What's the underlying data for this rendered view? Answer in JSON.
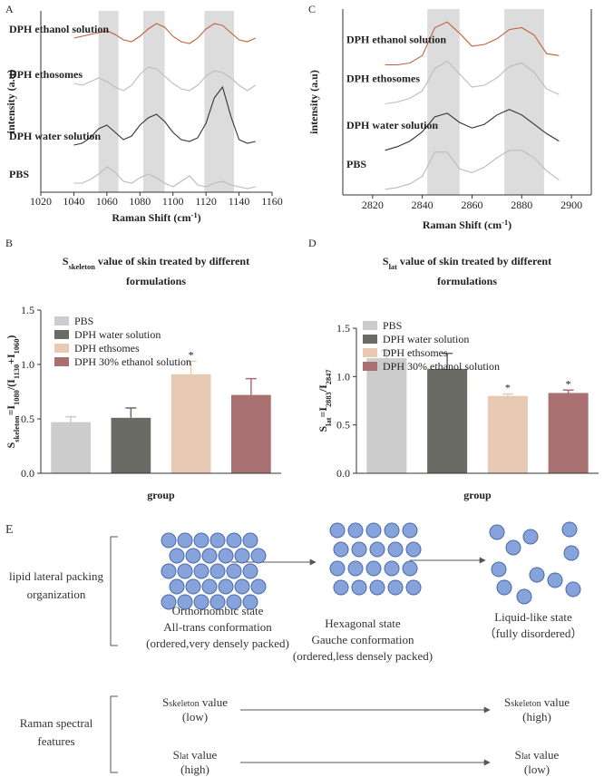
{
  "chart_data": [
    {
      "type": "spectrum",
      "panel_label": "A",
      "ylabel": [
        {
          "text": "intensity (a.u)"
        }
      ],
      "xlabel": [
        {
          "text": "Raman Shift (cm"
        },
        {
          "text": "-1",
          "sup": true
        },
        {
          "text": ")"
        }
      ],
      "xlim": [
        1020,
        1160
      ],
      "xticks": [
        1020,
        1040,
        1060,
        1080,
        1100,
        1120,
        1140,
        1160
      ],
      "ylim": [
        0,
        10
      ],
      "shaded_ranges": [
        [
          1055,
          1067
        ],
        [
          1082,
          1095
        ],
        [
          1119,
          1137
        ]
      ],
      "x": [
        1040,
        1045,
        1050,
        1055,
        1060,
        1065,
        1070,
        1075,
        1080,
        1085,
        1090,
        1095,
        1100,
        1105,
        1110,
        1115,
        1120,
        1125,
        1130,
        1135,
        1140,
        1145,
        1150
      ],
      "series": [
        {
          "name": "DPH ethanol solution",
          "color": "#c0603a",
          "values": [
            8.5,
            8.6,
            8.7,
            8.8,
            8.9,
            8.7,
            8.4,
            8.3,
            8.6,
            9.0,
            9.3,
            9.1,
            8.6,
            8.3,
            8.2,
            8.5,
            9.0,
            9.3,
            9.2,
            8.8,
            8.4,
            8.3,
            8.5
          ]
        },
        {
          "name": "DPH ethosomes",
          "color": "#bbbbbb",
          "values": [
            6.0,
            5.9,
            6.1,
            6.3,
            6.1,
            5.8,
            5.6,
            5.9,
            6.5,
            6.9,
            6.8,
            6.4,
            6.0,
            5.7,
            5.6,
            5.9,
            6.4,
            6.7,
            6.6,
            6.3,
            5.9,
            5.6,
            5.9
          ]
        },
        {
          "name": "DPH water solution",
          "color": "#333333",
          "values": [
            2.6,
            2.7,
            3.0,
            3.5,
            3.7,
            3.3,
            2.9,
            3.1,
            3.7,
            4.1,
            4.3,
            3.9,
            3.3,
            2.9,
            2.8,
            3.0,
            3.8,
            5.2,
            5.8,
            4.2,
            2.9,
            2.7,
            2.8
          ]
        },
        {
          "name": "PBS",
          "color": "#bbbbbb",
          "values": [
            0.5,
            0.5,
            0.7,
            1.0,
            1.4,
            1.1,
            0.6,
            0.5,
            0.8,
            1.0,
            0.8,
            0.5,
            0.3,
            0.6,
            0.9,
            0.4,
            0.3,
            0.5,
            0.6,
            0.4,
            0.3,
            0.2,
            0.3
          ]
        }
      ]
    },
    {
      "type": "bar",
      "panel_label": "B",
      "title": [
        [
          {
            "text": "S"
          },
          {
            "text": "skeleton",
            "sub": true
          },
          {
            "text": " value of  skin treated by different"
          }
        ],
        [
          {
            "text": "formulations"
          }
        ]
      ],
      "ylabel": [
        {
          "text": "S"
        },
        {
          "text": "skeleton",
          "sub": true
        },
        {
          "text": "=I"
        },
        {
          "text": "1080",
          "sub": true
        },
        {
          "text": "/(I"
        },
        {
          "text": "1130",
          "sub": true
        },
        {
          "text": "+I"
        },
        {
          "text": "1060",
          "sub": true
        },
        {
          "text": ")"
        }
      ],
      "xlabel": "group",
      "categories": [
        "PBS",
        "DPH water solution",
        "DPH ethsomes",
        "DPH 30% ethanol solution"
      ],
      "colors": [
        "#cccccc",
        "#6b6b66",
        "#e8c9b4",
        "#a87070"
      ],
      "values": [
        0.47,
        0.51,
        0.91,
        0.72
      ],
      "errors": [
        0.05,
        0.09,
        0.12,
        0.15
      ],
      "significance": [
        null,
        null,
        "*",
        null
      ],
      "ylim": [
        0,
        1.5
      ],
      "yticks": [
        {
          "value": 0,
          "label": "0.0"
        },
        0.5,
        {
          "value": 1,
          "label": "1.0"
        },
        1.5
      ]
    },
    {
      "type": "spectrum",
      "panel_label": "C",
      "ylabel": [
        {
          "text": "intensity (a.u)"
        }
      ],
      "xlabel": [
        {
          "text": "Raman Shift (cm"
        },
        {
          "text": "-1",
          "sup": true
        },
        {
          "text": ")"
        }
      ],
      "xlim": [
        2808,
        2908
      ],
      "xticks": [
        2820,
        2840,
        2860,
        2880,
        2900
      ],
      "ylim": [
        0,
        10
      ],
      "shaded_ranges": [
        [
          2842,
          2855
        ],
        [
          2873,
          2889
        ]
      ],
      "x": [
        2825,
        2830,
        2835,
        2840,
        2845,
        2850,
        2855,
        2860,
        2865,
        2870,
        2875,
        2880,
        2885,
        2890,
        2895
      ],
      "series": [
        {
          "name": "DPH ethanol solution",
          "color": "#c0603a",
          "values": [
            7.0,
            7.0,
            7.1,
            7.5,
            9.0,
            9.3,
            8.7,
            8.0,
            8.1,
            8.4,
            8.9,
            9.0,
            8.6,
            7.6,
            7.5
          ]
        },
        {
          "name": "DPH ethosomes",
          "color": "#bbbbbb",
          "values": [
            4.9,
            5.0,
            5.2,
            5.6,
            6.8,
            7.2,
            6.5,
            5.8,
            5.9,
            6.3,
            6.9,
            7.1,
            6.6,
            5.7,
            5.4
          ]
        },
        {
          "name": "DPH water solution",
          "color": "#333333",
          "values": [
            2.4,
            2.6,
            2.9,
            3.4,
            4.2,
            4.4,
            3.9,
            3.6,
            3.8,
            4.3,
            4.6,
            4.3,
            3.8,
            3.3,
            2.9
          ]
        },
        {
          "name": "PBS",
          "color": "#bbbbbb",
          "values": [
            0.3,
            0.4,
            0.6,
            1.0,
            2.3,
            2.3,
            1.4,
            1.2,
            1.5,
            2.0,
            2.4,
            2.4,
            2.0,
            1.3,
            0.8
          ]
        }
      ]
    },
    {
      "type": "bar",
      "panel_label": "D",
      "title": [
        [
          {
            "text": "S"
          },
          {
            "text": "lat",
            "sub": true
          },
          {
            "text": " value of  skin treated by different"
          }
        ],
        [
          {
            "text": "formulations"
          }
        ]
      ],
      "ylabel": [
        {
          "text": "S"
        },
        {
          "text": "lat",
          "sub": true
        },
        {
          "text": "=I"
        },
        {
          "text": "2883",
          "sub": true
        },
        {
          "text": "/I"
        },
        {
          "text": "2847",
          "sub": true
        }
      ],
      "xlabel": "group",
      "categories": [
        "PBS",
        "DPH water solution",
        "DPH ethsomes",
        "DPH 30% ethanol solution"
      ],
      "colors": [
        "#cccccc",
        "#6b6b66",
        "#e8c9b4",
        "#a87070"
      ],
      "values": [
        1.19,
        1.08,
        0.8,
        0.83
      ],
      "errors": [
        0.08,
        0.16,
        0.02,
        0.03
      ],
      "significance": [
        null,
        null,
        "*",
        "*"
      ],
      "ylim": [
        0,
        1.5
      ],
      "yticks": [
        {
          "value": 0,
          "label": "0.0"
        },
        0.5,
        {
          "value": 1,
          "label": "1.0"
        },
        1.5
      ]
    }
  ],
  "diagram": {
    "label": "E",
    "packing": {
      "heading": [
        "lipid lateral packing",
        "organization"
      ],
      "states": [
        [
          "Orthorhombic state",
          "All-trans conformation",
          "(ordered,very densely packed)"
        ],
        [
          "Hexagonal state",
          "Gauche conformation",
          "(ordered,less densely packed)"
        ],
        [
          "Liquid-like state",
          "（fully disordered）"
        ]
      ]
    },
    "raman": {
      "heading": [
        "Raman spectral",
        "features"
      ],
      "rows": [
        {
          "name": [
            "S",
            "skeleton",
            " value"
          ],
          "from": "(low)",
          "to": "(high)"
        },
        {
          "name": [
            "S",
            "lat",
            " value"
          ],
          "from": "(high)",
          "to": "(low)"
        }
      ]
    }
  }
}
